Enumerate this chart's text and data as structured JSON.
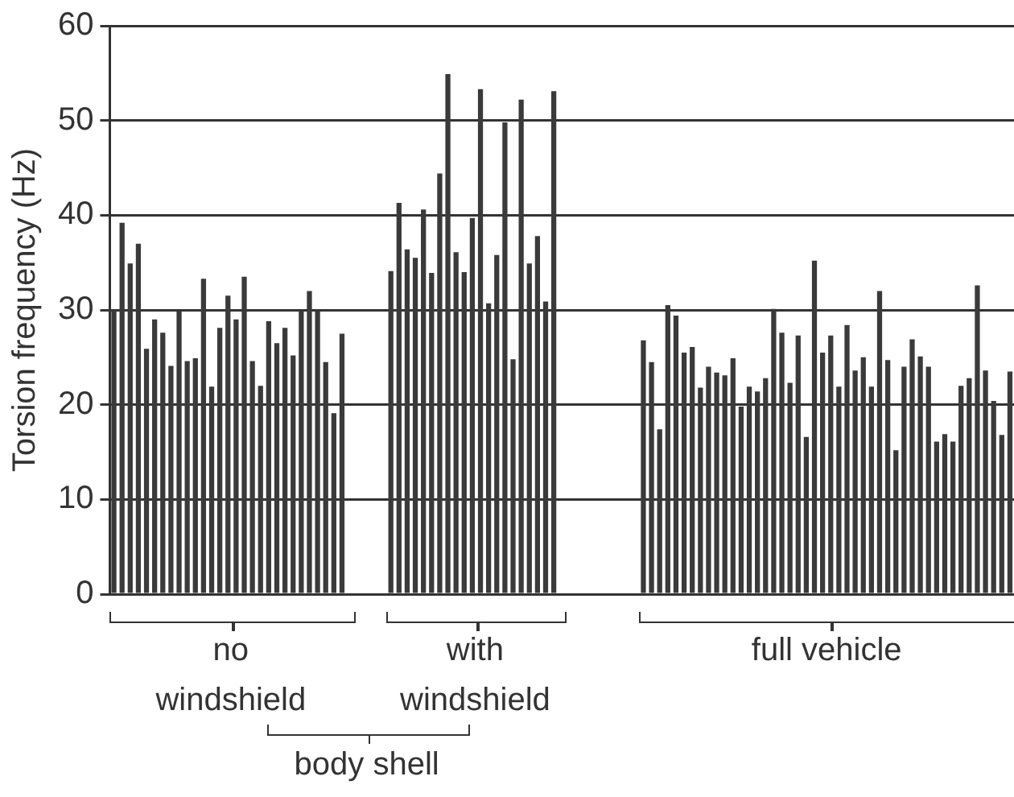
{
  "chart_data": {
    "type": "bar",
    "ylabel": "Torsion frequency (Hz)",
    "categories": [
      null,
      null,
      null,
      null,
      null,
      null,
      null,
      null,
      null,
      null,
      null,
      null,
      null,
      null,
      null,
      null,
      null,
      null,
      null,
      null,
      null,
      null,
      null,
      null,
      null,
      null,
      null,
      null,
      null,
      null,
      null,
      null,
      null,
      null,
      null,
      null,
      null,
      null,
      null,
      null,
      null,
      null,
      null,
      null,
      null,
      null,
      null,
      null,
      null,
      null,
      null,
      null,
      null,
      null,
      null,
      null,
      null,
      null,
      null,
      null,
      null,
      null,
      null,
      null,
      null,
      null,
      null,
      null,
      null,
      null,
      null,
      null,
      null,
      null,
      null,
      null,
      null,
      null,
      null,
      null,
      null,
      null,
      null,
      null,
      null,
      null,
      null,
      null,
      null,
      null,
      null,
      null,
      null,
      null,
      null,
      null,
      null,
      null,
      null,
      null,
      null,
      null,
      null,
      null,
      null,
      null,
      null,
      null,
      null,
      null,
      null
    ],
    "values": [
      30,
      39.2,
      34.9,
      37,
      25.9,
      29,
      27.6,
      24.1,
      29.9,
      24.6,
      24.9,
      33.3,
      21.9,
      28.1,
      31.5,
      29,
      33.5,
      24.6,
      22,
      28.8,
      26.5,
      28.1,
      25.2,
      29.9,
      32,
      29.9,
      24.5,
      19.1,
      27.5,
      null,
      null,
      null,
      null,
      null,
      34.1,
      41.3,
      36.4,
      35.5,
      40.6,
      33.9,
      44.4,
      54.9,
      36.1,
      34,
      39.7,
      53.3,
      30.7,
      35.8,
      49.8,
      24.8,
      52.2,
      34.9,
      37.8,
      30.9,
      53.1,
      null,
      null,
      null,
      null,
      null,
      null,
      null,
      null,
      null,
      null,
      26.8,
      24.5,
      17.4,
      30.5,
      29.4,
      25.5,
      26.1,
      21.8,
      24,
      23.4,
      23.1,
      24.9,
      19.8,
      21.9,
      21.4,
      22.8,
      30.1,
      27.6,
      22.3,
      27.3,
      16.6,
      35.2,
      25.5,
      27.3,
      21.9,
      28.4,
      23.6,
      25,
      21.9,
      32,
      24.7,
      15.2,
      24,
      26.9,
      25.1,
      24,
      16.1,
      16.9,
      16.1,
      22,
      22.8,
      32.6,
      23.6,
      20.4,
      16.8,
      23.5
    ],
    "color": "#3a3a3a",
    "ylim": [
      0,
      60
    ],
    "yticks": [
      0,
      10,
      20,
      30,
      40,
      50,
      60
    ],
    "grid": "y",
    "tick_labels": "y",
    "annotations": [
      "no windshield",
      "with windshield",
      "full vehicle",
      "body shell"
    ]
  }
}
